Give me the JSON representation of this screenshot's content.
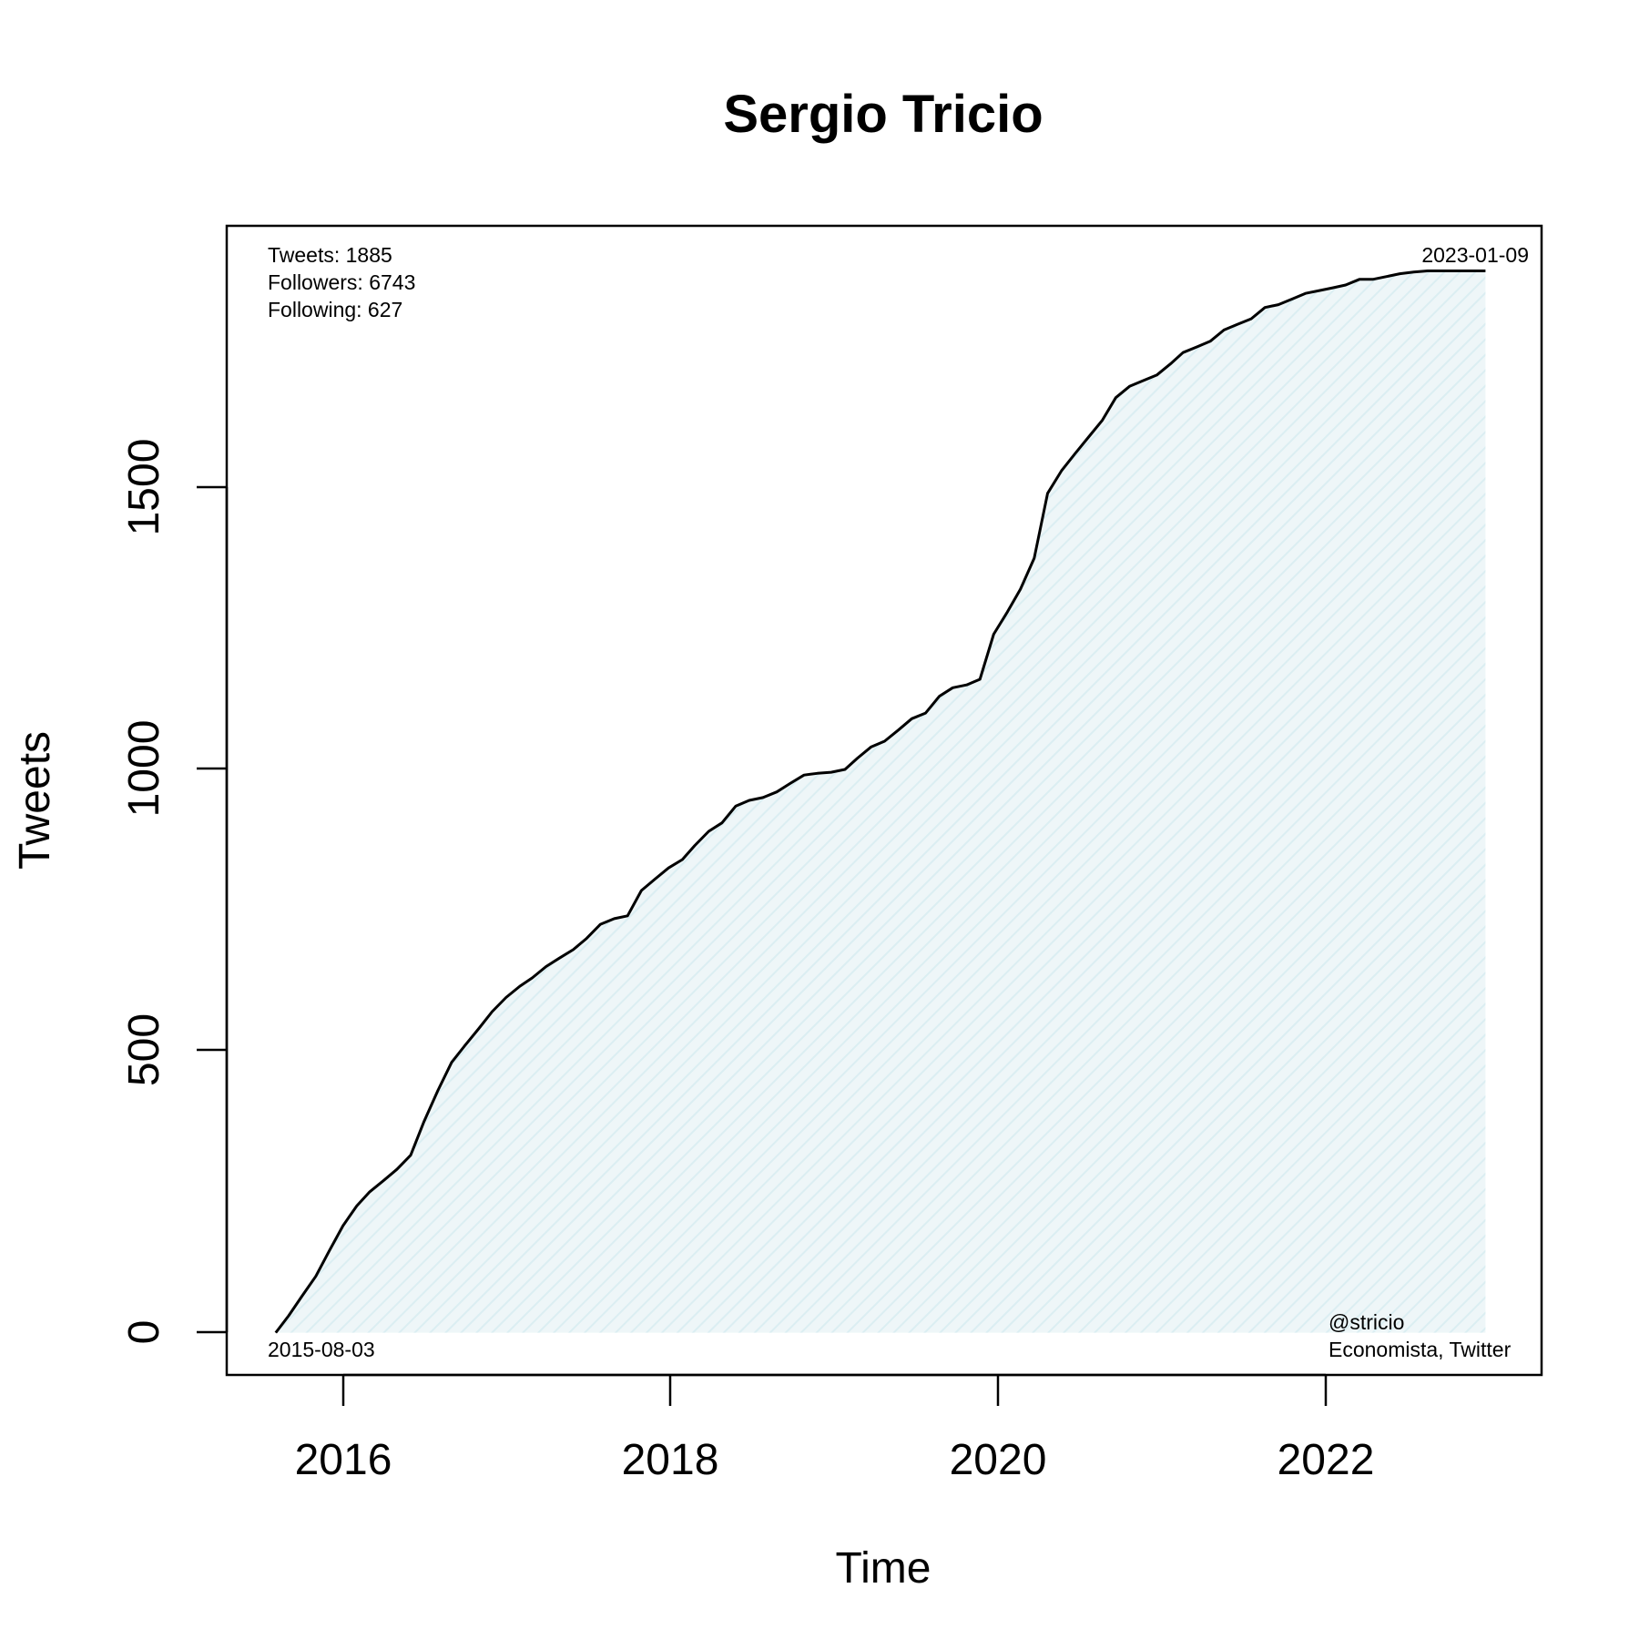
{
  "chart_data": {
    "type": "area",
    "title": "Sergio Tricio",
    "xlabel": "Time",
    "ylabel": "Tweets",
    "x_ticks": [
      "2016",
      "2018",
      "2020",
      "2022"
    ],
    "y_ticks": [
      "0",
      "500",
      "1000",
      "1500"
    ],
    "xlim": [
      "2015-04-15",
      "2023-05-15"
    ],
    "ylim": [
      -75,
      1965
    ],
    "grid": false,
    "fill_color": "#e3f0f4",
    "line_color": "#000000",
    "series": [
      {
        "x": [
          "2015-08-03",
          "2015-09-01",
          "2015-10-01",
          "2015-11-01",
          "2015-12-01",
          "2016-01-01",
          "2016-02-01",
          "2016-03-01",
          "2016-04-01",
          "2016-05-01",
          "2016-06-01",
          "2016-07-01",
          "2016-08-01",
          "2016-09-01",
          "2016-10-01",
          "2016-11-01",
          "2016-12-01",
          "2017-01-01",
          "2017-02-01",
          "2017-03-01",
          "2017-04-01",
          "2017-05-01",
          "2017-06-01",
          "2017-07-01",
          "2017-08-01",
          "2017-09-01",
          "2017-10-01",
          "2017-11-01",
          "2017-12-01",
          "2018-01-01",
          "2018-02-01",
          "2018-03-01",
          "2018-04-01",
          "2018-05-01",
          "2018-06-01",
          "2018-07-01",
          "2018-08-01",
          "2018-09-01",
          "2018-10-01",
          "2018-11-01",
          "2018-12-01",
          "2019-01-01",
          "2019-02-01",
          "2019-03-01",
          "2019-04-01",
          "2019-05-01",
          "2019-06-01",
          "2019-07-01",
          "2019-08-01",
          "2019-09-01",
          "2019-10-01",
          "2019-11-01",
          "2019-12-01",
          "2020-01-01",
          "2020-02-01",
          "2020-03-01",
          "2020-04-01",
          "2020-05-01",
          "2020-06-01",
          "2020-07-01",
          "2020-08-01",
          "2020-09-01",
          "2020-10-01",
          "2020-11-01",
          "2020-12-01",
          "2021-01-01",
          "2021-02-01",
          "2021-03-01",
          "2021-04-01",
          "2021-05-01",
          "2021-06-01",
          "2021-07-01",
          "2021-08-01",
          "2021-09-01",
          "2021-10-01",
          "2021-11-01",
          "2021-12-01",
          "2022-01-01",
          "2022-02-01",
          "2022-03-01",
          "2022-04-01",
          "2022-05-01",
          "2022-06-01",
          "2022-07-01",
          "2022-08-01",
          "2022-09-01",
          "2022-10-01",
          "2022-11-01",
          "2022-12-01",
          "2023-01-09"
        ],
        "values": [
          0,
          30,
          65,
          100,
          145,
          190,
          225,
          250,
          270,
          290,
          315,
          375,
          430,
          480,
          510,
          540,
          570,
          595,
          615,
          630,
          650,
          665,
          680,
          700,
          725,
          735,
          740,
          785,
          805,
          825,
          840,
          865,
          890,
          905,
          935,
          945,
          950,
          960,
          975,
          990,
          993,
          995,
          1000,
          1020,
          1040,
          1050,
          1070,
          1090,
          1100,
          1130,
          1145,
          1150,
          1160,
          1240,
          1280,
          1320,
          1375,
          1490,
          1530,
          1560,
          1590,
          1620,
          1660,
          1680,
          1690,
          1700,
          1720,
          1740,
          1750,
          1760,
          1780,
          1790,
          1800,
          1820,
          1825,
          1835,
          1845,
          1850,
          1855,
          1860,
          1870,
          1870,
          1875,
          1880,
          1883,
          1885,
          1885,
          1885,
          1885,
          1885
        ]
      }
    ],
    "annotations": {
      "tweets": "Tweets: 1885",
      "followers": "Followers: 6743",
      "following": "Following: 627",
      "start_date": "2015-08-03",
      "end_date": "2023-01-09",
      "handle": "@stricio",
      "description": "Economista, Twitter"
    }
  }
}
